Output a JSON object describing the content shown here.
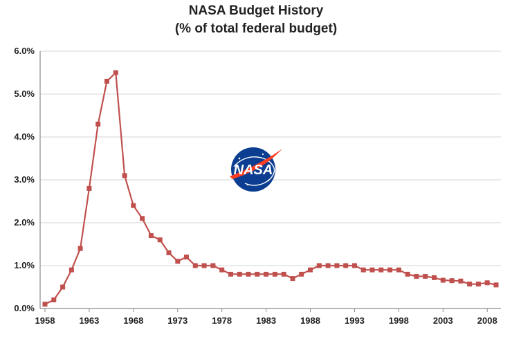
{
  "chart_data": {
    "type": "line",
    "title": "NASA Budget History",
    "subtitle": "(% of total federal budget)",
    "xlabel": "",
    "ylabel": "",
    "x_tick_labels": [
      "1958",
      "1963",
      "1968",
      "1973",
      "1978",
      "1983",
      "1988",
      "1993",
      "1998",
      "2003",
      "2008"
    ],
    "y_tick_labels": [
      "0.0%",
      "1.0%",
      "2.0%",
      "3.0%",
      "4.0%",
      "5.0%",
      "6.0%"
    ],
    "xlim": [
      1958,
      2009
    ],
    "ylim": [
      0,
      6
    ],
    "grid": true,
    "series": [
      {
        "color": "#c0504d",
        "x": [
          1958,
          1959,
          1960,
          1961,
          1962,
          1963,
          1964,
          1965,
          1966,
          1967,
          1968,
          1969,
          1970,
          1971,
          1972,
          1973,
          1974,
          1975,
          1976,
          1977,
          1978,
          1979,
          1980,
          1981,
          1982,
          1983,
          1984,
          1985,
          1986,
          1987,
          1988,
          1989,
          1990,
          1991,
          1992,
          1993,
          1994,
          1995,
          1996,
          1997,
          1998,
          1999,
          2000,
          2001,
          2002,
          2003,
          2004,
          2005,
          2006,
          2007,
          2008,
          2009
        ],
        "values": [
          0.1,
          0.2,
          0.5,
          0.9,
          1.4,
          2.8,
          4.3,
          5.3,
          5.5,
          3.1,
          2.4,
          2.1,
          1.7,
          1.6,
          1.3,
          1.1,
          1.2,
          1.0,
          1.0,
          1.0,
          0.9,
          0.8,
          0.8,
          0.8,
          0.8,
          0.8,
          0.8,
          0.8,
          0.7,
          0.8,
          0.9,
          1.0,
          1.0,
          1.0,
          1.0,
          1.0,
          0.9,
          0.9,
          0.9,
          0.9,
          0.9,
          0.8,
          0.75,
          0.75,
          0.72,
          0.66,
          0.65,
          0.64,
          0.57,
          0.57,
          0.6,
          0.55
        ]
      }
    ]
  },
  "logo": {
    "name": "nasa-logo",
    "text": "NASA",
    "color_blue": "#0b3d91",
    "color_red": "#fc3d21"
  }
}
